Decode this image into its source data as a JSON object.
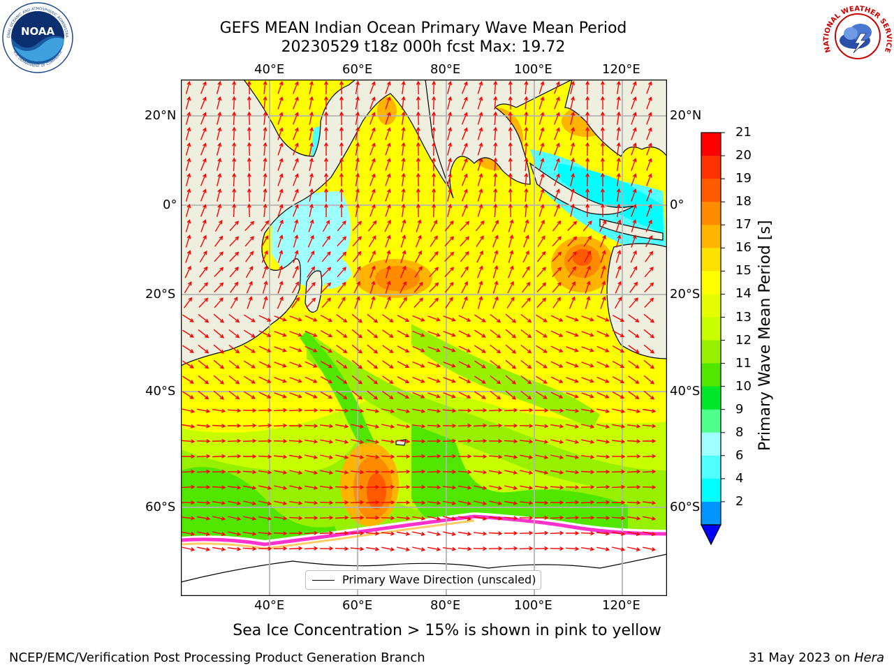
{
  "title": {
    "line1": "GEFS MEAN Indian Ocean Primary Wave Mean Period",
    "line2": "20230529 t18z 000h fcst   Max: 19.72"
  },
  "map": {
    "lon_labels": [
      "40°E",
      "60°E",
      "80°E",
      "100°E",
      "120°E"
    ],
    "lat_labels": [
      "20°N",
      "0°",
      "20°S",
      "40°S",
      "60°S"
    ],
    "legend_label": "Primary Wave Direction (unscaled)",
    "colors": {
      "land": "#efefdf",
      "ice": "#ffffff",
      "grid": "#b4b4b4",
      "arrow": "#ff0000",
      "ice_edge": [
        "#ff33cc",
        "#ff66ff",
        "#ffcc66",
        "#ffff66"
      ]
    }
  },
  "colorbar": {
    "label": "Primary Wave Mean Period [s]",
    "ticks": [
      "21",
      "20",
      "19",
      "18",
      "17",
      "16",
      "15",
      "14",
      "13",
      "12",
      "11",
      "10",
      "9",
      "8",
      "6",
      "4",
      "2"
    ],
    "colors": [
      "#ff0000",
      "#ff3300",
      "#ff5a00",
      "#ff8c00",
      "#ffb400",
      "#ffe100",
      "#ffff00",
      "#e6ff00",
      "#c8ff00",
      "#96f000",
      "#50e600",
      "#00e628",
      "#50ff8c",
      "#a0ffff",
      "#50ffff",
      "#00ffff",
      "#0096ff"
    ],
    "extend_color": "#0000ff"
  },
  "bottom_note": "Sea Ice Concentration > 15% is shown in pink to yellow",
  "footer": {
    "left": "NCEP/EMC/Verification Post Processing Product Generation Branch",
    "right_prefix": "31 May 2023 on ",
    "right_machine": "Hera"
  },
  "logos": {
    "noaa_text": "NOAA",
    "noaa_ring_top": "NATIONAL OCEANIC AND ATMOSPHERIC ADMINISTRATION",
    "noaa_ring_bottom": "U.S. DEPARTMENT OF COMMERCE",
    "nws_ring": "NATIONAL WEATHER SERVICE"
  }
}
